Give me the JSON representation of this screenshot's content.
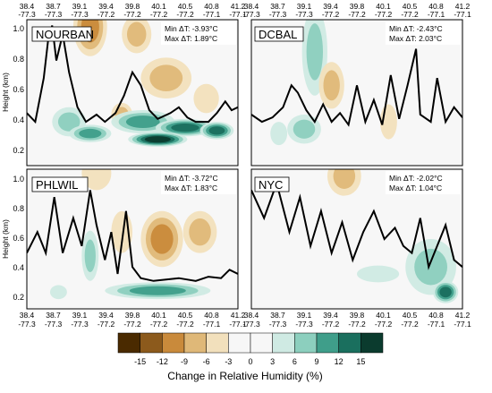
{
  "chart_data": [
    {
      "type": "heatmap",
      "panel": "NOURBAN",
      "label": "NOURBAN",
      "stats": [
        "Min ΔT: -3.93°C",
        "Max ΔT: 1.89°C"
      ],
      "ylabel": "Height (km)",
      "ylim": [
        0.1,
        1.05
      ],
      "yticks": [
        "1.0",
        "0.8",
        "0.6",
        "0.4",
        "0.2"
      ],
      "xticks_top": [
        [
          "38.4",
          "-77.3"
        ],
        [
          "38.7",
          "-77.3"
        ],
        [
          "39.1",
          "-77.3"
        ],
        [
          "39.4",
          "-77.2"
        ],
        [
          "39.8",
          "-77.2"
        ],
        [
          "40.1",
          "-77.2"
        ],
        [
          "40.5",
          "-77.2"
        ],
        [
          "40.8",
          "-77.1"
        ],
        [
          "41.2",
          "-77.1"
        ]
      ],
      "blobs": [
        {
          "x": 0.3,
          "y": 0.95,
          "rx": 0.08,
          "ry": 0.2,
          "v": -8
        },
        {
          "x": 0.52,
          "y": 0.9,
          "rx": 0.07,
          "ry": 0.13,
          "v": -7
        },
        {
          "x": 0.66,
          "y": 0.6,
          "rx": 0.12,
          "ry": 0.14,
          "v": -7
        },
        {
          "x": 0.85,
          "y": 0.46,
          "rx": 0.06,
          "ry": 0.1,
          "v": -4
        },
        {
          "x": 0.45,
          "y": 0.35,
          "rx": 0.05,
          "ry": 0.08,
          "v": -5
        },
        {
          "x": 0.2,
          "y": 0.3,
          "rx": 0.08,
          "ry": 0.1,
          "v": 7
        },
        {
          "x": 0.55,
          "y": 0.3,
          "rx": 0.15,
          "ry": 0.08,
          "v": 8
        },
        {
          "x": 0.75,
          "y": 0.26,
          "rx": 0.14,
          "ry": 0.06,
          "v": 11
        },
        {
          "x": 0.62,
          "y": 0.18,
          "rx": 0.14,
          "ry": 0.05,
          "v": 15
        },
        {
          "x": 0.3,
          "y": 0.22,
          "rx": 0.1,
          "ry": 0.06,
          "v": 9
        },
        {
          "x": 0.9,
          "y": 0.24,
          "rx": 0.08,
          "ry": 0.06,
          "v": 12
        }
      ],
      "zero_line": [
        [
          0.0,
          0.36
        ],
        [
          0.04,
          0.3
        ],
        [
          0.08,
          0.6
        ],
        [
          0.1,
          0.85
        ],
        [
          0.12,
          0.96
        ],
        [
          0.14,
          0.72
        ],
        [
          0.17,
          0.9
        ],
        [
          0.2,
          0.64
        ],
        [
          0.24,
          0.4
        ],
        [
          0.28,
          0.3
        ],
        [
          0.33,
          0.35
        ],
        [
          0.37,
          0.3
        ],
        [
          0.42,
          0.36
        ],
        [
          0.46,
          0.48
        ],
        [
          0.5,
          0.64
        ],
        [
          0.54,
          0.55
        ],
        [
          0.58,
          0.38
        ],
        [
          0.62,
          0.32
        ],
        [
          0.68,
          0.36
        ],
        [
          0.72,
          0.4
        ],
        [
          0.76,
          0.33
        ],
        [
          0.8,
          0.3
        ],
        [
          0.86,
          0.3
        ],
        [
          0.9,
          0.36
        ],
        [
          0.94,
          0.44
        ],
        [
          0.97,
          0.38
        ],
        [
          1.0,
          0.4
        ]
      ]
    },
    {
      "type": "heatmap",
      "panel": "DCBAL",
      "label": "DCBAL",
      "stats": [
        "Min ΔT: -2.43°C",
        "Max ΔT: 2.03°C"
      ],
      "ylim": [
        0.1,
        1.05
      ],
      "xticks_top": [
        [
          "38.4",
          "-77.3"
        ],
        [
          "38.7",
          "-77.3"
        ],
        [
          "39.1",
          "-77.3"
        ],
        [
          "39.4",
          "-77.2"
        ],
        [
          "39.8",
          "-77.2"
        ],
        [
          "40.1",
          "-77.2"
        ],
        [
          "40.5",
          "-77.2"
        ],
        [
          "40.8",
          "-77.1"
        ],
        [
          "41.2",
          "-77.1"
        ]
      ],
      "blobs": [
        {
          "x": 0.3,
          "y": 0.78,
          "rx": 0.06,
          "ry": 0.3,
          "v": 7
        },
        {
          "x": 0.25,
          "y": 0.25,
          "rx": 0.08,
          "ry": 0.1,
          "v": 5
        },
        {
          "x": 0.38,
          "y": 0.55,
          "rx": 0.06,
          "ry": 0.16,
          "v": -6
        },
        {
          "x": 0.65,
          "y": 0.3,
          "rx": 0.04,
          "ry": 0.12,
          "v": -4
        },
        {
          "x": 0.13,
          "y": 0.22,
          "rx": 0.04,
          "ry": 0.08,
          "v": 3
        }
      ],
      "zero_line": [
        [
          0.0,
          0.35
        ],
        [
          0.05,
          0.3
        ],
        [
          0.1,
          0.33
        ],
        [
          0.15,
          0.4
        ],
        [
          0.19,
          0.55
        ],
        [
          0.22,
          0.5
        ],
        [
          0.26,
          0.38
        ],
        [
          0.3,
          0.3
        ],
        [
          0.34,
          0.42
        ],
        [
          0.38,
          0.3
        ],
        [
          0.42,
          0.36
        ],
        [
          0.46,
          0.28
        ],
        [
          0.5,
          0.55
        ],
        [
          0.54,
          0.3
        ],
        [
          0.58,
          0.45
        ],
        [
          0.62,
          0.28
        ],
        [
          0.66,
          0.62
        ],
        [
          0.7,
          0.32
        ],
        [
          0.74,
          0.55
        ],
        [
          0.78,
          0.8
        ],
        [
          0.8,
          0.35
        ],
        [
          0.85,
          0.3
        ],
        [
          0.88,
          0.6
        ],
        [
          0.92,
          0.3
        ],
        [
          0.96,
          0.4
        ],
        [
          1.0,
          0.33
        ]
      ]
    },
    {
      "type": "heatmap",
      "panel": "PHLWIL",
      "label": "PHLWIL",
      "stats": [
        "Min ΔT: -3.72°C",
        "Max ΔT: 1.83°C"
      ],
      "ylabel": "Height (km)",
      "ylim": [
        0.1,
        1.05
      ],
      "yticks": [
        "1.0",
        "0.8",
        "0.6",
        "0.4",
        "0.2"
      ],
      "xticks_bottom": [
        [
          "38.4",
          "-77.3"
        ],
        [
          "38.7",
          "-77.3"
        ],
        [
          "39.1",
          "-77.3"
        ],
        [
          "39.4",
          "-77.2"
        ],
        [
          "39.8",
          "-77.2"
        ],
        [
          "40.1",
          "-77.2"
        ],
        [
          "40.5",
          "-77.2"
        ],
        [
          "40.8",
          "-77.1"
        ],
        [
          "41.2",
          "-77.1"
        ]
      ],
      "blobs": [
        {
          "x": 0.33,
          "y": 0.97,
          "rx": 0.07,
          "ry": 0.12,
          "v": -4
        },
        {
          "x": 0.64,
          "y": 0.5,
          "rx": 0.1,
          "ry": 0.2,
          "v": -10
        },
        {
          "x": 0.82,
          "y": 0.55,
          "rx": 0.08,
          "ry": 0.15,
          "v": -5
        },
        {
          "x": 0.45,
          "y": 0.55,
          "rx": 0.05,
          "ry": 0.15,
          "v": -3
        },
        {
          "x": 0.3,
          "y": 0.38,
          "rx": 0.04,
          "ry": 0.18,
          "v": 6
        },
        {
          "x": 0.62,
          "y": 0.13,
          "rx": 0.25,
          "ry": 0.06,
          "v": 8
        },
        {
          "x": 0.15,
          "y": 0.12,
          "rx": 0.04,
          "ry": 0.05,
          "v": 4
        }
      ],
      "zero_line": [
        [
          0.0,
          0.4
        ],
        [
          0.05,
          0.55
        ],
        [
          0.09,
          0.4
        ],
        [
          0.13,
          0.8
        ],
        [
          0.17,
          0.4
        ],
        [
          0.22,
          0.65
        ],
        [
          0.26,
          0.45
        ],
        [
          0.3,
          0.85
        ],
        [
          0.33,
          0.6
        ],
        [
          0.37,
          0.35
        ],
        [
          0.4,
          0.55
        ],
        [
          0.43,
          0.25
        ],
        [
          0.47,
          0.7
        ],
        [
          0.5,
          0.3
        ],
        [
          0.54,
          0.22
        ],
        [
          0.6,
          0.2
        ],
        [
          0.66,
          0.21
        ],
        [
          0.72,
          0.22
        ],
        [
          0.8,
          0.2
        ],
        [
          0.86,
          0.23
        ],
        [
          0.92,
          0.22
        ],
        [
          0.96,
          0.28
        ],
        [
          1.0,
          0.25
        ]
      ]
    },
    {
      "type": "heatmap",
      "panel": "NYC",
      "label": "NYC",
      "stats": [
        "Min ΔT: -2.02°C",
        "Max ΔT: 1.04°C"
      ],
      "ylim": [
        0.1,
        1.05
      ],
      "xticks_bottom": [
        [
          "38.4",
          "-77.3"
        ],
        [
          "38.7",
          "-77.3"
        ],
        [
          "39.1",
          "-77.3"
        ],
        [
          "39.4",
          "-77.2"
        ],
        [
          "39.8",
          "-77.2"
        ],
        [
          "40.1",
          "-77.2"
        ],
        [
          "40.5",
          "-77.2"
        ],
        [
          "40.8",
          "-77.1"
        ],
        [
          "41.2",
          "-77.1"
        ]
      ],
      "blobs": [
        {
          "x": 0.44,
          "y": 0.95,
          "rx": 0.08,
          "ry": 0.14,
          "v": -5
        },
        {
          "x": 0.85,
          "y": 0.3,
          "rx": 0.12,
          "ry": 0.2,
          "v": 6
        },
        {
          "x": 0.92,
          "y": 0.12,
          "rx": 0.06,
          "ry": 0.08,
          "v": 12
        },
        {
          "x": 0.6,
          "y": 0.25,
          "rx": 0.1,
          "ry": 0.06,
          "v": 3
        }
      ],
      "zero_line": [
        [
          0.0,
          0.85
        ],
        [
          0.06,
          0.65
        ],
        [
          0.12,
          0.9
        ],
        [
          0.18,
          0.55
        ],
        [
          0.23,
          0.8
        ],
        [
          0.28,
          0.45
        ],
        [
          0.33,
          0.7
        ],
        [
          0.38,
          0.4
        ],
        [
          0.43,
          0.62
        ],
        [
          0.48,
          0.35
        ],
        [
          0.53,
          0.55
        ],
        [
          0.58,
          0.7
        ],
        [
          0.63,
          0.5
        ],
        [
          0.68,
          0.58
        ],
        [
          0.72,
          0.45
        ],
        [
          0.76,
          0.4
        ],
        [
          0.8,
          0.65
        ],
        [
          0.84,
          0.3
        ],
        [
          0.88,
          0.45
        ],
        [
          0.92,
          0.6
        ],
        [
          0.96,
          0.35
        ],
        [
          1.0,
          0.3
        ]
      ]
    }
  ],
  "colorbar": {
    "title": "Change in Relative Humidity (%)",
    "ticks": [
      "-15",
      "-12",
      "-9",
      "-6",
      "-3",
      "0",
      "3",
      "6",
      "9",
      "12",
      "15"
    ],
    "colors": [
      "#4a2a00",
      "#8c5a1c",
      "#c98a3b",
      "#dfb878",
      "#f2e0bc",
      "#f7f7f7",
      "#f7f7f7",
      "#cfeae3",
      "#8ccfbe",
      "#3f9e8a",
      "#1a6f5e",
      "#0b3b2e"
    ]
  }
}
